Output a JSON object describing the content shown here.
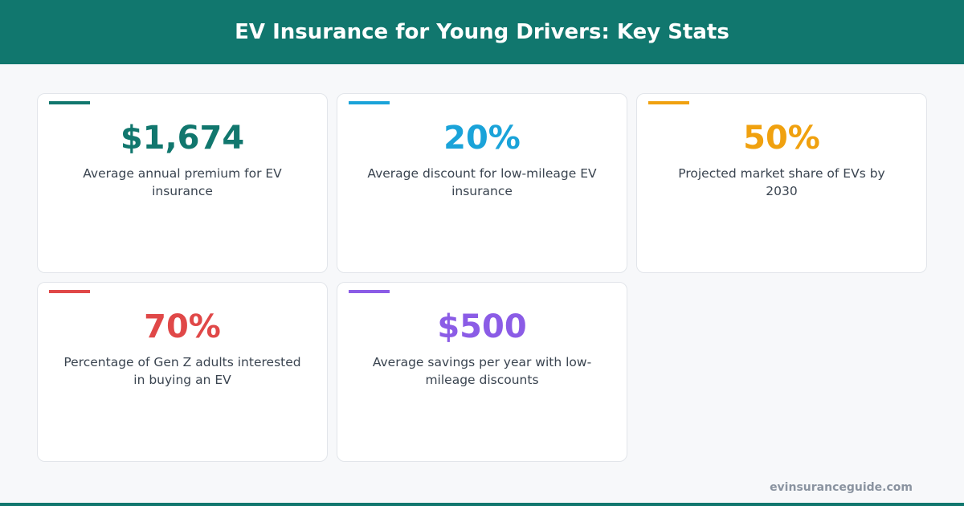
{
  "header": {
    "title": "EV Insurance for Young Drivers: Key Stats"
  },
  "cards": [
    {
      "value": "$1,674",
      "label": "Average annual premium for EV insurance",
      "color": "#11776e"
    },
    {
      "value": "20%",
      "label": "Average discount for low-mileage EV insurance",
      "color": "#1aa3d9"
    },
    {
      "value": "50%",
      "label": "Projected market share of EVs by 2030",
      "color": "#f0a10f"
    },
    {
      "value": "70%",
      "label": "Percentage of Gen Z adults interested in buying an EV",
      "color": "#e04848"
    },
    {
      "value": "$500",
      "label": "Average savings per year with low-mileage discounts",
      "color": "#8b5ce6"
    }
  ],
  "footer": {
    "site": "evinsuranceguide.com"
  }
}
